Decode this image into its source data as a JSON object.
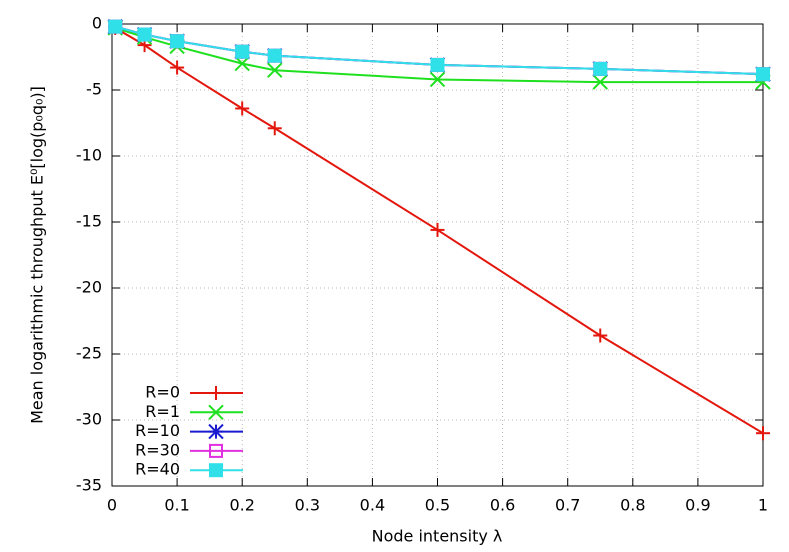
{
  "chart_data": {
    "type": "line",
    "xlabel": "Node intensity λ",
    "ylabel": "Mean logarithmic throughput E⁰[log(p₀q₀)]",
    "x": [
      0.005,
      0.05,
      0.1,
      0.2,
      0.25,
      0.5,
      0.75,
      1
    ],
    "series": [
      {
        "name": "R=0",
        "color": "#e3170d",
        "marker": "plus",
        "values": [
          -0.3,
          -1.6,
          -3.3,
          -6.4,
          -7.9,
          -15.6,
          -23.6,
          -31.0
        ]
      },
      {
        "name": "R=1",
        "color": "#1ee01e",
        "marker": "cross",
        "values": [
          -0.3,
          -1.0,
          -1.7,
          -3.0,
          -3.5,
          -4.2,
          -4.4,
          -4.4
        ]
      },
      {
        "name": "R=10",
        "color": "#1a1ad0",
        "marker": "star",
        "values": [
          -0.2,
          -0.8,
          -1.3,
          -2.1,
          -2.4,
          -3.1,
          -3.4,
          -3.8
        ]
      },
      {
        "name": "R=30",
        "color": "#e030e0",
        "marker": "square-open",
        "values": [
          -0.2,
          -0.8,
          -1.3,
          -2.1,
          -2.4,
          -3.1,
          -3.4,
          -3.8
        ]
      },
      {
        "name": "R=40",
        "color": "#30e0e8",
        "marker": "square-filled",
        "values": [
          -0.2,
          -0.8,
          -1.3,
          -2.1,
          -2.4,
          -3.1,
          -3.4,
          -3.8
        ]
      }
    ],
    "xlim": [
      0,
      1
    ],
    "xticks": [
      0,
      0.1,
      0.2,
      0.3,
      0.4,
      0.5,
      0.6,
      0.7,
      0.8,
      0.9,
      1
    ],
    "ylim": [
      -35,
      0
    ],
    "yticks": [
      -35,
      -30,
      -25,
      -20,
      -15,
      -10,
      -5,
      0
    ],
    "grid": true,
    "legend": "bottom-left"
  }
}
